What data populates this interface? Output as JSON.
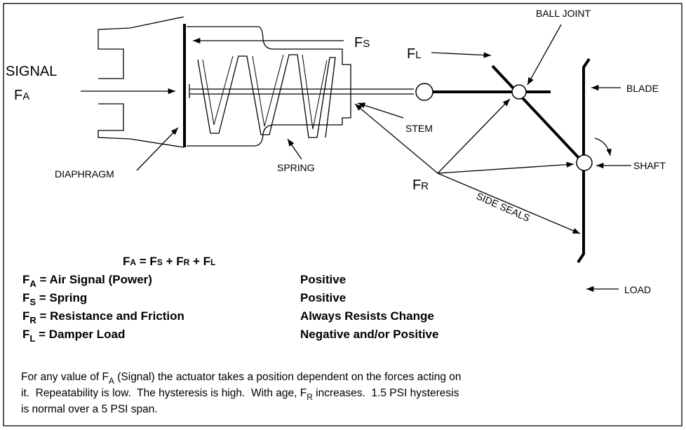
{
  "labels": {
    "signal": "SIGNAL",
    "fa": {
      "main": "F",
      "sub": "A"
    },
    "fs": {
      "main": "F",
      "sub": "S"
    },
    "fl": {
      "main": "F",
      "sub": "L"
    },
    "fr": {
      "main": "F",
      "sub": "R"
    },
    "ball_joint": "BALL JOINT",
    "blade": "BLADE",
    "shaft": "SHAFT",
    "load": "LOAD",
    "stem": "STEM",
    "spring": "SPRING",
    "diaphragm": "DIAPHRAGM",
    "side_seals": "SIDE SEALS"
  },
  "equation": [
    {
      "text": "F"
    },
    {
      "small": "A"
    },
    {
      "text": " = F"
    },
    {
      "small": "S"
    },
    {
      "text": " + F"
    },
    {
      "small": "R"
    },
    {
      "text": " + F"
    },
    {
      "small": "L"
    }
  ],
  "legend": [
    {
      "symbol": "F",
      "sub": "A",
      "text": " = Air Signal (Power)",
      "effect": "Positive"
    },
    {
      "symbol": "F",
      "sub": "S",
      "text": " = Spring",
      "effect": "Positive"
    },
    {
      "symbol": "F",
      "sub": "R",
      "text": " = Resistance and Friction",
      "effect": "Always Resists Change"
    },
    {
      "symbol": "F",
      "sub": "L",
      "text": " = Damper Load",
      "effect": "Negative and/or Positive"
    }
  ],
  "paragraph": [
    [
      {
        "text": "For any value of F"
      },
      {
        "sub": "A"
      },
      {
        "text": " (Signal) the actuator takes a position dependent on the forces acting on"
      }
    ],
    [
      {
        "text": "it.  Repeatability is low.  The hysteresis is high.  With age, F"
      },
      {
        "sub": "R"
      },
      {
        "text": " increases.  1.5 PSI hysteresis"
      }
    ],
    [
      {
        "text": "is normal over a 5 PSI span."
      }
    ]
  ]
}
